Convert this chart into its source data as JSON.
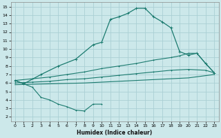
{
  "xlabel": "Humidex (Indice chaleur)",
  "bg_color": "#cce8ea",
  "line_color": "#1a7a6e",
  "grid_color": "#aacfd4",
  "xlim": [
    -0.5,
    23.5
  ],
  "ylim": [
    1.5,
    15.5
  ],
  "xticks": [
    0,
    1,
    2,
    3,
    4,
    5,
    6,
    7,
    8,
    9,
    10,
    11,
    12,
    13,
    14,
    15,
    16,
    17,
    18,
    19,
    20,
    21,
    22,
    23
  ],
  "yticks": [
    2,
    3,
    4,
    5,
    6,
    7,
    8,
    9,
    10,
    11,
    12,
    13,
    14,
    15
  ],
  "curve_peak": [
    [
      0,
      6.3
    ],
    [
      1,
      5.9
    ],
    [
      3,
      7.0
    ],
    [
      5,
      8.0
    ],
    [
      7,
      8.8
    ],
    [
      9,
      10.5
    ],
    [
      10,
      10.8
    ],
    [
      11,
      13.5
    ],
    [
      12,
      13.8
    ],
    [
      13,
      14.2
    ],
    [
      14,
      14.8
    ],
    [
      15,
      14.8
    ],
    [
      16,
      13.8
    ],
    [
      17,
      13.2
    ],
    [
      18,
      12.5
    ],
    [
      19,
      9.7
    ],
    [
      20,
      9.3
    ],
    [
      21,
      9.5
    ],
    [
      22,
      8.3
    ],
    [
      23,
      7.2
    ]
  ],
  "curve_upper": [
    [
      0,
      6.3
    ],
    [
      2,
      6.5
    ],
    [
      4,
      6.7
    ],
    [
      6,
      7.0
    ],
    [
      8,
      7.3
    ],
    [
      10,
      7.7
    ],
    [
      12,
      8.0
    ],
    [
      14,
      8.3
    ],
    [
      16,
      8.7
    ],
    [
      18,
      9.0
    ],
    [
      19,
      9.2
    ],
    [
      20,
      9.5
    ],
    [
      21,
      9.5
    ],
    [
      22,
      8.3
    ],
    [
      23,
      7.2
    ]
  ],
  "curve_mid": [
    [
      0,
      6.0
    ],
    [
      2,
      6.1
    ],
    [
      4,
      6.2
    ],
    [
      6,
      6.4
    ],
    [
      8,
      6.5
    ],
    [
      10,
      6.7
    ],
    [
      12,
      6.9
    ],
    [
      14,
      7.1
    ],
    [
      16,
      7.3
    ],
    [
      18,
      7.5
    ],
    [
      20,
      7.6
    ],
    [
      22,
      7.5
    ],
    [
      23,
      7.2
    ]
  ],
  "curve_lower_flat": [
    [
      0,
      5.8
    ],
    [
      4,
      5.9
    ],
    [
      8,
      6.0
    ],
    [
      12,
      6.2
    ],
    [
      16,
      6.4
    ],
    [
      20,
      6.6
    ],
    [
      23,
      7.0
    ]
  ],
  "curve_bottom": [
    [
      0,
      6.3
    ],
    [
      1,
      5.9
    ],
    [
      2,
      5.5
    ],
    [
      3,
      4.3
    ],
    [
      4,
      4.0
    ],
    [
      5,
      3.5
    ],
    [
      6,
      3.2
    ],
    [
      7,
      2.8
    ],
    [
      8,
      2.7
    ],
    [
      9,
      3.5
    ],
    [
      10,
      3.5
    ]
  ]
}
